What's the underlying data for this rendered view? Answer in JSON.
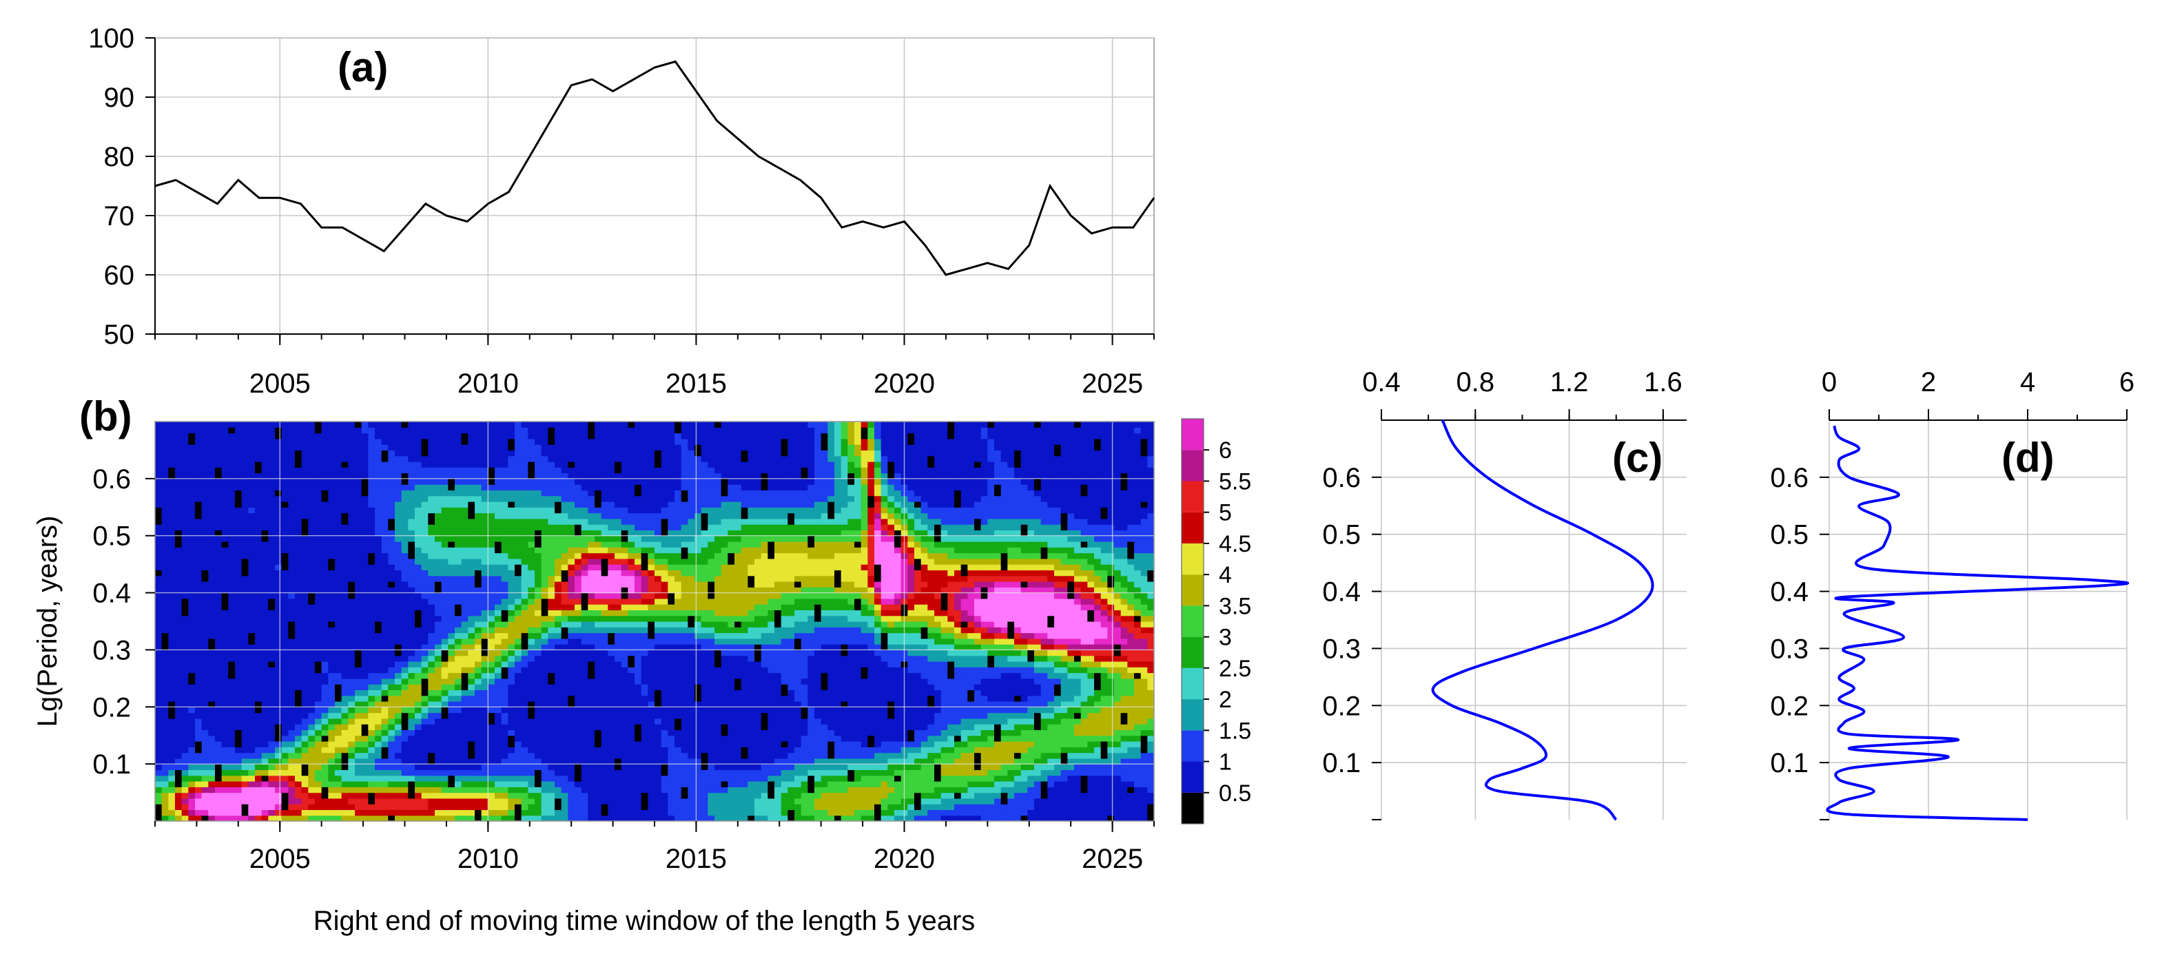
{
  "chart_data": [
    {
      "id": "a",
      "type": "line",
      "panel_label": "(a)",
      "title": "",
      "xlabel": "",
      "ylabel": "",
      "xlim": [
        2002,
        2026
      ],
      "ylim": [
        50,
        100
      ],
      "xticks": [
        2005,
        2010,
        2015,
        2020,
        2025
      ],
      "yticks": [
        50,
        60,
        70,
        80,
        90,
        100
      ],
      "grid": true,
      "line_color": "#000000",
      "series": [
        {
          "x": [
            2002.0,
            2002.5,
            2003.0,
            2003.5,
            2004.0,
            2004.5,
            2005.0,
            2005.5,
            2006.0,
            2006.5,
            2007.0,
            2007.5,
            2008.0,
            2008.5,
            2009.0,
            2009.5,
            2010.0,
            2010.5,
            2011.0,
            2011.5,
            2012.0,
            2012.5,
            2013.0,
            2013.5,
            2014.0,
            2014.5,
            2015.0,
            2015.5,
            2016.0,
            2016.5,
            2017.0,
            2017.5,
            2018.0,
            2018.5,
            2019.0,
            2019.5,
            2020.0,
            2020.5,
            2021.0,
            2021.5,
            2022.0,
            2022.5,
            2023.0,
            2023.5,
            2024.0,
            2024.5,
            2025.0,
            2025.5,
            2026.0
          ],
          "y": [
            75,
            76,
            74,
            72,
            76,
            73,
            73,
            72,
            68,
            68,
            66,
            64,
            68,
            72,
            70,
            69,
            72,
            74,
            80,
            86,
            92,
            93,
            91,
            93,
            95,
            96,
            91,
            86,
            83,
            80,
            78,
            76,
            73,
            68,
            69,
            68,
            69,
            65,
            60,
            61,
            62,
            61,
            65,
            75,
            70,
            67,
            68,
            68,
            73
          ]
        }
      ]
    },
    {
      "id": "b",
      "type": "heatmap",
      "panel_label": "(b)",
      "title": "",
      "xlabel": "Right end of moving time window of the length 5 years",
      "ylabel": "Lg(Period, years)",
      "xlim": [
        2002,
        2026
      ],
      "ylim": [
        0.0,
        0.7
      ],
      "xticks": [
        2005,
        2010,
        2015,
        2020,
        2025
      ],
      "yticks": [
        0.1,
        0.2,
        0.3,
        0.4,
        0.5,
        0.6
      ],
      "grid": true,
      "colorbar": {
        "levels": [
          0,
          0.5,
          1,
          1.5,
          2,
          2.5,
          3,
          3.5,
          4,
          4.5,
          5,
          5.5,
          6,
          6.5
        ],
        "tick_labels": [
          "0.5",
          "1",
          "1.5",
          "2",
          "2.5",
          "3",
          "3.5",
          "4",
          "4.5",
          "5",
          "5.5",
          "6"
        ],
        "tick_values": [
          0.5,
          1,
          1.5,
          2,
          2.5,
          3,
          3.5,
          4,
          4.5,
          5,
          5.5,
          6
        ],
        "colors": [
          "#000000",
          "#0a14c8",
          "#1e3cf0",
          "#14a0aa",
          "#3cd2c8",
          "#14aa14",
          "#3cd23c",
          "#b4b400",
          "#e6e632",
          "#c80000",
          "#e61e1e",
          "#b4148c",
          "#e628c8",
          "#ff78ff"
        ]
      },
      "ridges": [
        {
          "x0": 2004.0,
          "y0": 0.03,
          "x1": 2012.5,
          "y1": 0.42,
          "peak": 3.3,
          "width_x": 2.2,
          "width_y": 0.05
        },
        {
          "x0": 2004.0,
          "y0": 0.03,
          "x1": 2009.5,
          "y1": 0.03,
          "peak": 4.3,
          "width_x": 1.8,
          "width_y": 0.04
        },
        {
          "x0": 2009.5,
          "y0": 0.52,
          "x1": 2012.5,
          "y1": 0.45,
          "peak": 2.3,
          "width_x": 1.5,
          "width_y": 0.08
        },
        {
          "x0": 2017.5,
          "y0": 0.45,
          "x1": 2023.5,
          "y1": 0.4,
          "peak": 3.6,
          "width_x": 2.5,
          "width_y": 0.09
        },
        {
          "x0": 2022.5,
          "y0": 0.36,
          "x1": 2026.0,
          "y1": 0.3,
          "peak": 4.4,
          "width_x": 1.5,
          "width_y": 0.06
        },
        {
          "x0": 2018.5,
          "y0": 0.03,
          "x1": 2026.0,
          "y1": 0.2,
          "peak": 2.9,
          "width_x": 2.5,
          "width_y": 0.06
        },
        {
          "x0": 2013.5,
          "y0": 0.4,
          "x1": 2015.5,
          "y1": 0.36,
          "peak": 1.9,
          "width_x": 1.2,
          "width_y": 0.05
        },
        {
          "x0": 2019.0,
          "y0": 0.7,
          "x1": 2019.5,
          "y1": 0.45,
          "peak": 3.8,
          "width_x": 0.6,
          "width_y": 0.1
        }
      ]
    },
    {
      "id": "c",
      "type": "line",
      "panel_label": "(c)",
      "title": "",
      "xlabel": "",
      "ylabel": "",
      "xlim": [
        0.4,
        1.7
      ],
      "ylim": [
        0.0,
        0.7
      ],
      "xticks": [
        0.4,
        0.8,
        1.2,
        1.6
      ],
      "xtick_labels": [
        "0.4",
        "0.8",
        "1.2",
        "1.6"
      ],
      "yticks": [
        0.1,
        0.2,
        0.3,
        0.4,
        0.5,
        0.6
      ],
      "grid": true,
      "line_color": "#0000ff",
      "series": [
        {
          "x": [
            1.4,
            1.3,
            0.9,
            0.86,
            1.0,
            1.1,
            1.05,
            0.9,
            0.7,
            0.62,
            0.75,
            1.05,
            1.4,
            1.55,
            1.5,
            1.3,
            1.05,
            0.85,
            0.72,
            0.66
          ],
          "y": [
            0.0,
            0.03,
            0.05,
            0.07,
            0.09,
            0.11,
            0.14,
            0.17,
            0.2,
            0.23,
            0.26,
            0.3,
            0.35,
            0.4,
            0.45,
            0.5,
            0.55,
            0.6,
            0.65,
            0.7
          ]
        }
      ]
    },
    {
      "id": "d",
      "type": "line",
      "panel_label": "(d)",
      "title": "",
      "xlabel": "",
      "ylabel": "",
      "xlim": [
        0,
        6
      ],
      "ylim": [
        0.0,
        0.7
      ],
      "xticks": [
        0,
        2,
        4,
        6
      ],
      "xtick_labels": [
        "0",
        "2",
        "4",
        "6"
      ],
      "yticks": [
        0.1,
        0.2,
        0.3,
        0.4,
        0.5,
        0.6
      ],
      "grid": true,
      "line_color": "#0000ff",
      "series": [
        {
          "x": [
            4.0,
            0.3,
            0.2,
            0.9,
            0.2,
            0.4,
            2.4,
            0.4,
            2.6,
            0.4,
            0.3,
            0.7,
            0.2,
            0.5,
            0.2,
            0.7,
            0.3,
            1.5,
            0.3,
            1.3,
            0.3,
            5.5,
            5.3,
            0.8,
            1.1,
            1.2,
            0.6,
            1.4,
            0.4,
            0.2,
            0.6,
            0.2,
            0.1
          ],
          "y": [
            0.0,
            0.01,
            0.03,
            0.05,
            0.07,
            0.09,
            0.11,
            0.125,
            0.14,
            0.15,
            0.17,
            0.19,
            0.21,
            0.23,
            0.25,
            0.28,
            0.3,
            0.32,
            0.36,
            0.38,
            0.39,
            0.41,
            0.42,
            0.44,
            0.48,
            0.52,
            0.55,
            0.57,
            0.6,
            0.63,
            0.65,
            0.67,
            0.69
          ]
        }
      ]
    }
  ]
}
